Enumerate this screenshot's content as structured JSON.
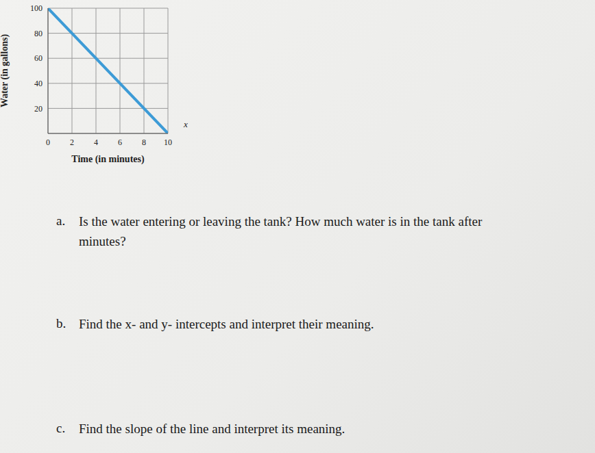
{
  "chart_data": {
    "type": "line",
    "x_label": "Time (in minutes)",
    "y_label": "Water (in gallons)",
    "annotations": [
      "x"
    ],
    "x": [
      0,
      10
    ],
    "values": [
      100,
      0
    ],
    "color": "#3d9bd6",
    "xlim": [
      0,
      10
    ],
    "xticks": [
      0,
      2,
      4,
      6,
      8,
      10
    ],
    "ylim": [
      0,
      100
    ],
    "yticks": [
      20,
      40,
      60,
      80,
      100
    ],
    "grid": true
  },
  "questions": [
    {
      "label": "a.",
      "lines": [
        "Is the water entering or leaving the tank? How much water is in the tank after",
        "minutes?"
      ]
    },
    {
      "label": "b.",
      "lines": [
        "Find the x- and y- intercepts and interpret their meaning."
      ]
    },
    {
      "label": "c.",
      "lines": [
        "Find the slope of the line and interpret its meaning."
      ]
    }
  ]
}
